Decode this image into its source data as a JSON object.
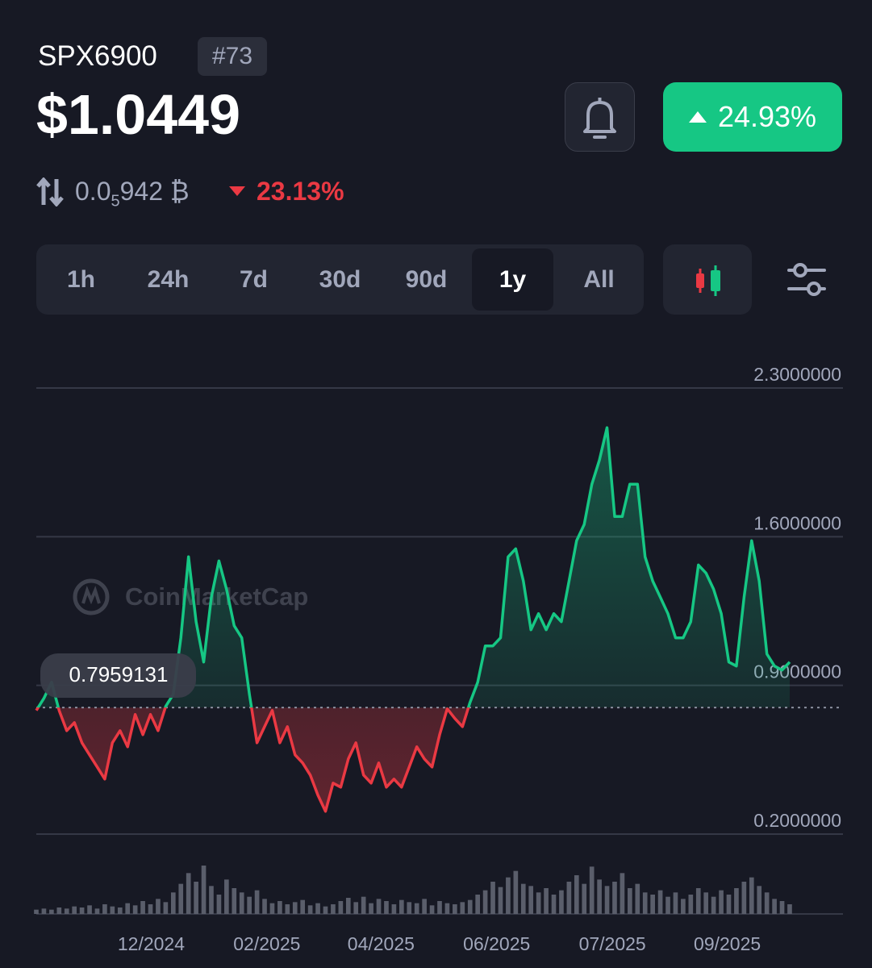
{
  "header": {
    "symbol": "SPX6900",
    "rank": "#73",
    "price": "$1.0449",
    "change": "24.93%",
    "btc_price_lead": "0.0",
    "btc_price_zeros": "5",
    "btc_price_tail": "942 ₿",
    "btc_change": "23.13%"
  },
  "timeframes": [
    "1h",
    "24h",
    "7d",
    "30d",
    "90d",
    "1y",
    "All"
  ],
  "active_timeframe": 5,
  "watermark": "CoinMarketCap",
  "chart_data": {
    "type": "line",
    "values": [
      0.782,
      0.839,
      0.915,
      0.782,
      0.687,
      0.725,
      0.63,
      0.573,
      0.516,
      0.459,
      0.63,
      0.687,
      0.611,
      0.763,
      0.668,
      0.763,
      0.687,
      0.801,
      0.858,
      1.124,
      1.505,
      1.2,
      1.01,
      1.315,
      1.486,
      1.353,
      1.181,
      1.124,
      0.858,
      0.63,
      0.706,
      0.782,
      0.63,
      0.706,
      0.573,
      0.535,
      0.478,
      0.383,
      0.307,
      0.44,
      0.421,
      0.554,
      0.63,
      0.478,
      0.44,
      0.535,
      0.421,
      0.459,
      0.421,
      0.516,
      0.611,
      0.554,
      0.516,
      0.668,
      0.79,
      0.744,
      0.706,
      0.82,
      0.915,
      1.086,
      1.086,
      1.124,
      1.505,
      1.543,
      1.391,
      1.162,
      1.238,
      1.162,
      1.238,
      1.2,
      1.391,
      1.581,
      1.657,
      1.847,
      1.961,
      2.113,
      1.695,
      1.695,
      1.847,
      1.847,
      1.505,
      1.391,
      1.315,
      1.238,
      1.124,
      1.124,
      1.2,
      1.467,
      1.429,
      1.353,
      1.238,
      1.01,
      0.991,
      1.315,
      1.581,
      1.391,
      1.048,
      0.991,
      0.972,
      1.01
    ],
    "volume": [
      4,
      5,
      4,
      6,
      5,
      7,
      6,
      8,
      5,
      9,
      7,
      6,
      10,
      8,
      12,
      9,
      14,
      11,
      20,
      28,
      38,
      30,
      45,
      26,
      18,
      32,
      24,
      20,
      16,
      22,
      14,
      10,
      12,
      9,
      11,
      13,
      8,
      10,
      7,
      9,
      12,
      15,
      11,
      16,
      10,
      14,
      12,
      9,
      13,
      11,
      10,
      14,
      8,
      12,
      10,
      9,
      11,
      13,
      18,
      22,
      30,
      25,
      34,
      40,
      28,
      26,
      20,
      24,
      18,
      22,
      30,
      36,
      28,
      44,
      32,
      26,
      30,
      38,
      24,
      28,
      20,
      18,
      22,
      16,
      20,
      14,
      18,
      24,
      20,
      16,
      22,
      18,
      24,
      30,
      34,
      26,
      20,
      14,
      12,
      9
    ],
    "baseline": 0.7959131,
    "up_color": "#16c784",
    "down_color": "#ea3943",
    "volume_color": "#5a5e6b",
    "ylim": [
      0.2,
      2.3
    ],
    "yticks": [
      {
        "value": 0.2,
        "label": "0.2000000"
      },
      {
        "value": 0.9,
        "label": "0.9000000"
      },
      {
        "value": 1.6,
        "label": "1.6000000"
      },
      {
        "value": 2.3,
        "label": "2.3000000"
      }
    ],
    "xlim": [
      0,
      106
    ],
    "xticks": [
      {
        "value": 15.1,
        "label": "12/2024"
      },
      {
        "value": 30.3,
        "label": "02/2025"
      },
      {
        "value": 45.3,
        "label": "04/2025"
      },
      {
        "value": 60.5,
        "label": "06/2025"
      },
      {
        "value": 75.7,
        "label": "07/2025"
      },
      {
        "value": 90.8,
        "label": "09/2025"
      }
    ],
    "grid": true
  }
}
